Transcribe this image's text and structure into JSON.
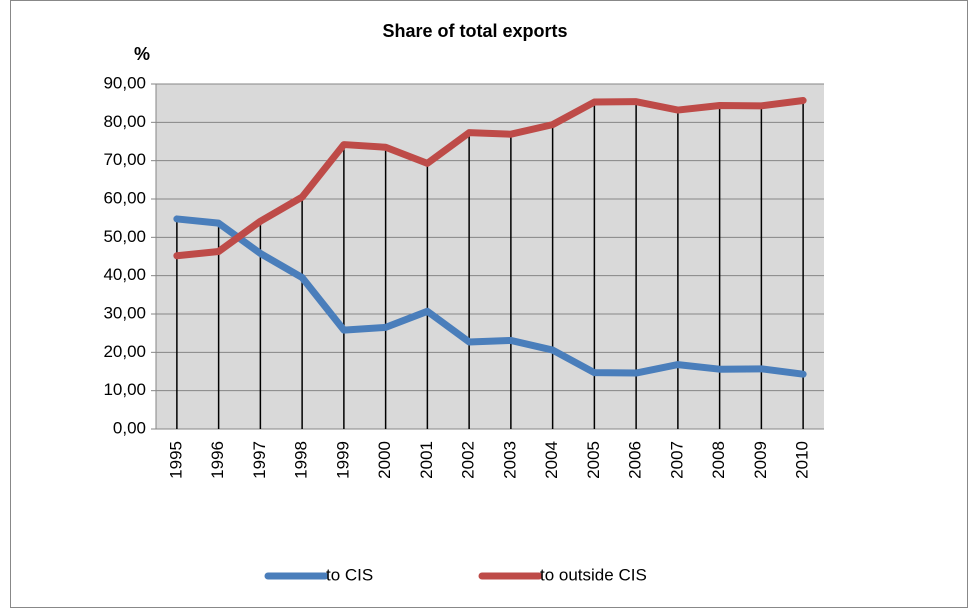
{
  "chart_data": {
    "type": "line",
    "title": "Share of total exports",
    "y_label": "%",
    "categories": [
      "1995",
      "1996",
      "1997",
      "1998",
      "1999",
      "2000",
      "2001",
      "2002",
      "2003",
      "2004",
      "2005",
      "2006",
      "2007",
      "2008",
      "2009",
      "2010"
    ],
    "series": [
      {
        "name": "to CIS",
        "color": "#4a7ebb",
        "values": [
          54.8,
          53.7,
          45.8,
          39.5,
          25.8,
          26.5,
          30.7,
          22.7,
          23.1,
          20.6,
          14.7,
          14.6,
          16.8,
          15.6,
          15.7,
          14.3
        ]
      },
      {
        "name": "to outside CIS",
        "color": "#be4b48",
        "values": [
          45.2,
          46.3,
          54.2,
          60.5,
          74.2,
          73.5,
          69.3,
          77.3,
          76.9,
          79.4,
          85.3,
          85.4,
          83.2,
          84.4,
          84.3,
          85.7
        ]
      }
    ],
    "ylim": [
      0,
      90
    ],
    "yticks": [
      {
        "value": 0,
        "label": "0,00"
      },
      {
        "value": 10,
        "label": "10,00"
      },
      {
        "value": 20,
        "label": "20,00"
      },
      {
        "value": 30,
        "label": "30,00"
      },
      {
        "value": 40,
        "label": "40,00"
      },
      {
        "value": 50,
        "label": "50,00"
      },
      {
        "value": 60,
        "label": "60,00"
      },
      {
        "value": 70,
        "label": "70,00"
      },
      {
        "value": 80,
        "label": "80,00"
      },
      {
        "value": 90,
        "label": "90,00"
      }
    ],
    "grid": true,
    "drop_lines": true,
    "legend": "bottom"
  }
}
